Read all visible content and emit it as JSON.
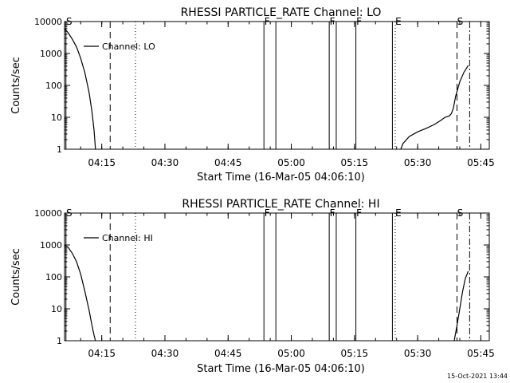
{
  "footer_timestamp": "15-Oct-2021 13:44",
  "chart_data": [
    {
      "type": "line",
      "title": "RHESSI PARTICLE_RATE Channel: LO",
      "xlabel": "Start Time (16-Mar-05 04:06:10)",
      "ylabel": "Counts/sec",
      "yscale": "log",
      "ylim": [
        1,
        10000
      ],
      "xlim": [
        "04:06:10",
        "05:47:00"
      ],
      "y_ticks": [
        "1",
        "10",
        "100",
        "1000",
        "10000"
      ],
      "x_ticks": [
        "04:15",
        "04:30",
        "04:45",
        "05:00",
        "05:15",
        "05:30",
        "05:45"
      ],
      "legend": "Channel: LO",
      "markers": [
        {
          "time": "04:06:30",
          "style": "solid",
          "label": "S"
        },
        {
          "time": "04:17:00",
          "style": "dashed",
          "label": ""
        },
        {
          "time": "04:23:00",
          "style": "dotted",
          "label": ""
        },
        {
          "time": "04:53:30",
          "style": "solid",
          "label": "F"
        },
        {
          "time": "04:56:20",
          "style": "solid",
          "label": ""
        },
        {
          "time": "05:09:00",
          "style": "solid",
          "label": "F"
        },
        {
          "time": "05:10:40",
          "style": "solid",
          "label": ""
        },
        {
          "time": "05:15:20",
          "style": "solid",
          "label": "F"
        },
        {
          "time": "05:24:00",
          "style": "solid",
          "label": ""
        },
        {
          "time": "05:24:40",
          "style": "dotted",
          "label": "E"
        },
        {
          "time": "05:39:20",
          "style": "dashed",
          "label": "S"
        },
        {
          "time": "05:42:20",
          "style": "dashdot",
          "label": ""
        }
      ],
      "series": [
        {
          "segments": [
            {
              "x": [
                "04:06:10",
                "04:07:00",
                "04:08:00",
                "04:09:00",
                "04:10:00",
                "04:11:00",
                "04:12:00",
                "04:12:40",
                "04:13:10",
                "04:13:30"
              ],
              "y": [
                6000,
                4500,
                2800,
                1600,
                700,
                250,
                60,
                15,
                4,
                1
              ]
            },
            {
              "x": [
                "05:26:00",
                "05:26:30",
                "05:28:00",
                "05:30:00",
                "05:32:00",
                "05:34:00",
                "05:35:30",
                "05:36:30",
                "05:37:30",
                "05:38:00",
                "05:38:30",
                "05:39:00",
                "05:40:00",
                "05:41:00",
                "05:42:00"
              ],
              "y": [
                1,
                1.5,
                2.5,
                3.5,
                4.5,
                6,
                8,
                10,
                11,
                13,
                20,
                45,
                130,
                260,
                420
              ]
            }
          ]
        }
      ]
    },
    {
      "type": "line",
      "title": "RHESSI PARTICLE_RATE Channel: HI",
      "xlabel": "Start Time (16-Mar-05 04:06:10)",
      "ylabel": "Counts/sec",
      "yscale": "log",
      "ylim": [
        1,
        10000
      ],
      "xlim": [
        "04:06:10",
        "05:47:00"
      ],
      "y_ticks": [
        "1",
        "10",
        "100",
        "1000",
        "10000"
      ],
      "x_ticks": [
        "04:15",
        "04:30",
        "04:45",
        "05:00",
        "05:15",
        "05:30",
        "05:45"
      ],
      "legend": "Channel: HI",
      "markers": [
        {
          "time": "04:06:30",
          "style": "solid",
          "label": "S"
        },
        {
          "time": "04:17:00",
          "style": "dashed",
          "label": ""
        },
        {
          "time": "04:23:00",
          "style": "dotted",
          "label": ""
        },
        {
          "time": "04:53:30",
          "style": "solid",
          "label": "F"
        },
        {
          "time": "04:56:20",
          "style": "solid",
          "label": ""
        },
        {
          "time": "05:09:00",
          "style": "solid",
          "label": "F"
        },
        {
          "time": "05:10:40",
          "style": "solid",
          "label": ""
        },
        {
          "time": "05:15:20",
          "style": "solid",
          "label": "F"
        },
        {
          "time": "05:24:00",
          "style": "solid",
          "label": ""
        },
        {
          "time": "05:24:40",
          "style": "dotted",
          "label": "E"
        },
        {
          "time": "05:39:20",
          "style": "dashed",
          "label": "S"
        },
        {
          "time": "05:42:20",
          "style": "dashdot",
          "label": ""
        }
      ],
      "series": [
        {
          "segments": [
            {
              "x": [
                "04:06:10",
                "04:07:00",
                "04:08:00",
                "04:09:00",
                "04:10:00",
                "04:11:00",
                "04:12:00",
                "04:12:40",
                "04:13:10",
                "04:13:30"
              ],
              "y": [
                1000,
                850,
                550,
                300,
                120,
                35,
                9,
                3,
                1.5,
                1
              ]
            },
            {
              "x": [
                "05:38:40",
                "05:39:20",
                "05:40:00",
                "05:40:40",
                "05:41:20",
                "05:42:00"
              ],
              "y": [
                1,
                3,
                10,
                35,
                90,
                150
              ]
            }
          ]
        }
      ]
    }
  ]
}
